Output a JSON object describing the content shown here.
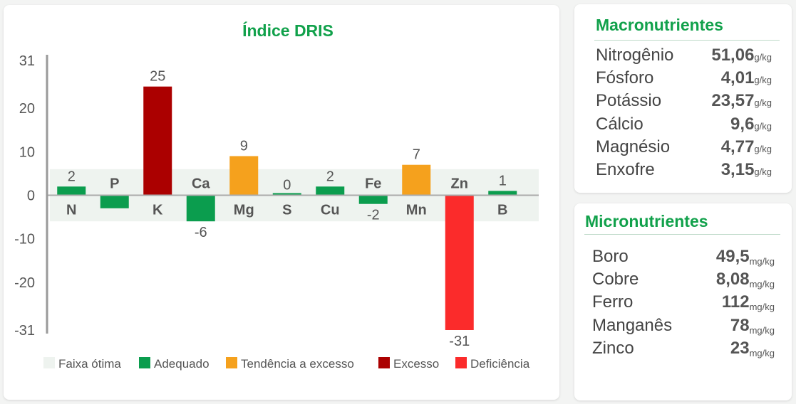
{
  "chart_data": {
    "type": "bar",
    "title": "Índice DRIS",
    "categories": [
      "N",
      "P",
      "K",
      "Ca",
      "Mg",
      "S",
      "Cu",
      "Fe",
      "Mn",
      "Zn",
      "B"
    ],
    "values": [
      2,
      -3,
      25,
      -6,
      9,
      0,
      2,
      -2,
      7,
      -31,
      1
    ],
    "value_labels": [
      "2",
      "",
      "25",
      "-6",
      "9",
      "0",
      "2",
      "-2",
      "7",
      "-31",
      "1"
    ],
    "status": [
      "adequado",
      "adequado",
      "excesso",
      "adequado",
      "tendencia",
      "adequado",
      "adequado",
      "adequado",
      "tendencia",
      "deficiencia",
      "adequado"
    ],
    "ylim": [
      -31,
      31
    ],
    "yticks": [
      31,
      20,
      10,
      0,
      -10,
      -20,
      -31
    ],
    "optimal_band": [
      -6,
      6
    ],
    "colors": {
      "adequado": "#0b9d4e",
      "tendencia": "#f5a11d",
      "excesso": "#ab0000",
      "deficiencia": "#fb2b2b",
      "faixa": "#eef3ef"
    },
    "legend": [
      {
        "key": "faixa",
        "label": "Faixa ótima"
      },
      {
        "key": "adequado",
        "label": "Adequado"
      },
      {
        "key": "tendencia",
        "label": "Tendência a excesso"
      },
      {
        "key": "excesso",
        "label": "Excesso"
      },
      {
        "key": "deficiencia",
        "label": "Deficiência"
      }
    ],
    "legend_position": "bottom"
  },
  "macro": {
    "title": "Macronutrientes",
    "items": [
      {
        "name": "Nitrogênio",
        "value": "51,06",
        "unit": "g/kg"
      },
      {
        "name": "Fósforo",
        "value": "4,01",
        "unit": "g/kg"
      },
      {
        "name": "Potássio",
        "value": "23,57",
        "unit": "g/kg"
      },
      {
        "name": "Cálcio",
        "value": "9,6",
        "unit": "g/kg"
      },
      {
        "name": "Magnésio",
        "value": "4,77",
        "unit": "g/kg"
      },
      {
        "name": "Enxofre",
        "value": "3,15",
        "unit": "g/kg"
      }
    ]
  },
  "micro": {
    "title": "Micronutrientes",
    "items": [
      {
        "name": "Boro",
        "value": "49,5",
        "unit": "mg/kg"
      },
      {
        "name": "Cobre",
        "value": "8,08",
        "unit": "mg/kg"
      },
      {
        "name": "Ferro",
        "value": "112",
        "unit": "mg/kg"
      },
      {
        "name": "Manganês",
        "value": "78",
        "unit": "mg/kg"
      },
      {
        "name": "Zinco",
        "value": "23",
        "unit": "mg/kg"
      }
    ]
  }
}
